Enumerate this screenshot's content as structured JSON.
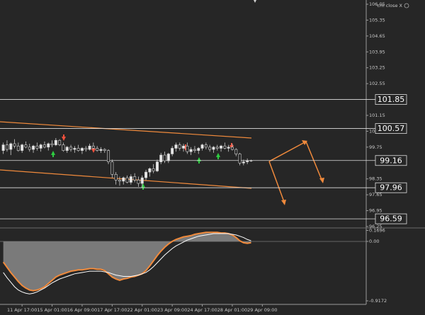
{
  "chart_data": {
    "type": "candlestick",
    "label": "crn close X",
    "categories": [
      null,
      null,
      null,
      null,
      null,
      "11 Apr 17:00",
      null,
      null,
      null,
      null,
      null,
      null,
      null,
      "15 Apr 01:00",
      null,
      null,
      null,
      null,
      null,
      null,
      null,
      "16 Apr 09:00",
      null,
      null,
      null,
      null,
      null,
      null,
      null,
      "17 Apr 17:00",
      null,
      null,
      null,
      null,
      null,
      null,
      null,
      "22 Apr 01:00",
      null,
      null,
      null,
      null,
      null,
      null,
      null,
      "23 Apr 09:00",
      null,
      null,
      null,
      null,
      null,
      null,
      null,
      "24 Apr 17:00",
      null,
      null,
      null,
      null,
      null,
      null,
      null,
      "28 Apr 01:00",
      null,
      null,
      null,
      null,
      null,
      null,
      null,
      "29 Apr 09:00"
    ],
    "candles": [
      [
        99.6,
        99.95,
        99.45,
        99.85
      ],
      [
        99.85,
        100.05,
        99.55,
        99.65
      ],
      [
        99.65,
        99.95,
        99.4,
        99.9
      ],
      [
        99.9,
        100.1,
        99.7,
        99.8
      ],
      [
        99.8,
        99.95,
        99.55,
        99.6
      ],
      [
        99.6,
        99.9,
        99.5,
        99.85
      ],
      [
        99.85,
        100.0,
        99.7,
        99.75
      ],
      [
        99.75,
        99.9,
        99.55,
        99.65
      ],
      [
        99.65,
        99.85,
        99.5,
        99.8
      ],
      [
        99.8,
        99.95,
        99.6,
        99.7
      ],
      [
        99.7,
        99.9,
        99.55,
        99.85
      ],
      [
        99.85,
        100.0,
        99.7,
        99.75
      ],
      [
        99.75,
        99.95,
        99.6,
        99.9
      ],
      [
        99.9,
        100.05,
        99.75,
        99.85
      ],
      [
        99.85,
        100.15,
        99.8,
        100.05
      ],
      [
        100.05,
        100.1,
        99.8,
        99.85
      ],
      [
        99.85,
        99.95,
        99.55,
        99.6
      ],
      [
        99.6,
        99.8,
        99.5,
        99.75
      ],
      [
        99.75,
        99.85,
        99.55,
        99.65
      ],
      [
        99.65,
        99.8,
        99.5,
        99.7
      ],
      [
        99.7,
        99.85,
        99.55,
        99.6
      ],
      [
        99.6,
        99.75,
        99.45,
        99.7
      ],
      [
        99.7,
        99.8,
        99.55,
        99.65
      ],
      [
        99.65,
        99.9,
        99.6,
        99.8
      ],
      [
        99.8,
        99.95,
        99.65,
        99.7
      ],
      [
        99.7,
        99.8,
        99.55,
        99.6
      ],
      [
        99.6,
        99.75,
        99.5,
        99.65
      ],
      [
        99.65,
        99.7,
        99.5,
        99.6
      ],
      [
        99.6,
        99.65,
        99.0,
        99.1
      ],
      [
        99.1,
        99.2,
        98.4,
        98.55
      ],
      [
        98.55,
        98.65,
        98.1,
        98.3
      ],
      [
        98.3,
        98.45,
        98.05,
        98.25
      ],
      [
        98.25,
        98.45,
        98.1,
        98.4
      ],
      [
        98.4,
        98.5,
        98.15,
        98.2
      ],
      [
        98.2,
        98.55,
        98.1,
        98.45
      ],
      [
        98.45,
        98.6,
        98.2,
        98.3
      ],
      [
        98.3,
        98.45,
        98.0,
        98.15
      ],
      [
        98.15,
        98.5,
        97.95,
        98.4
      ],
      [
        98.4,
        98.75,
        98.3,
        98.65
      ],
      [
        98.65,
        98.85,
        98.45,
        98.8
      ],
      [
        98.8,
        99.0,
        98.6,
        98.7
      ],
      [
        98.7,
        99.2,
        98.65,
        99.1
      ],
      [
        99.1,
        99.5,
        99.0,
        99.4
      ],
      [
        99.4,
        99.55,
        99.05,
        99.15
      ],
      [
        99.15,
        99.5,
        99.05,
        99.45
      ],
      [
        99.45,
        99.8,
        99.35,
        99.7
      ],
      [
        99.7,
        99.95,
        99.55,
        99.85
      ],
      [
        99.85,
        99.95,
        99.6,
        99.7
      ],
      [
        99.7,
        99.9,
        99.55,
        99.8
      ],
      [
        99.8,
        99.95,
        99.45,
        99.55
      ],
      [
        99.55,
        99.75,
        99.4,
        99.65
      ],
      [
        99.65,
        99.8,
        99.5,
        99.6
      ],
      [
        99.6,
        99.75,
        99.45,
        99.7
      ],
      [
        99.7,
        99.9,
        99.6,
        99.85
      ],
      [
        99.85,
        99.95,
        99.65,
        99.75
      ],
      [
        99.75,
        99.85,
        99.55,
        99.65
      ],
      [
        99.65,
        99.8,
        99.5,
        99.75
      ],
      [
        99.75,
        99.85,
        99.6,
        99.7
      ],
      [
        99.7,
        99.85,
        99.55,
        99.8
      ],
      [
        99.8,
        99.95,
        99.65,
        99.7
      ],
      [
        99.7,
        99.85,
        99.55,
        99.75
      ],
      [
        99.75,
        99.9,
        99.6,
        99.65
      ],
      [
        99.65,
        99.7,
        99.35,
        99.45
      ],
      [
        99.45,
        99.5,
        98.95,
        99.05
      ],
      [
        99.05,
        99.2,
        98.95,
        99.1
      ],
      [
        99.1,
        99.25,
        99.0,
        99.15
      ],
      [
        99.15,
        99.2,
        99.1,
        99.16
      ],
      null,
      null,
      null
    ],
    "ylim": [
      96.25,
      106.05
    ],
    "yticks": [
      106.05,
      105.35,
      104.65,
      103.95,
      103.25,
      102.55,
      101.15,
      100.45,
      99.75,
      98.35,
      97.65,
      96.95,
      96.25
    ],
    "levels": [
      101.85,
      100.57,
      99.16,
      97.96,
      96.59
    ],
    "up_color": "#e8e8e8",
    "down_color": "#262626",
    "wick_color": "#cfcfcf",
    "indicator": {
      "ylim": [
        -0.9172,
        0.1696
      ],
      "yticks": [
        0.1696,
        {
          "value": 0,
          "label": "0.00"
        },
        -0.9172
      ],
      "series": [
        {
          "color": "#f08a3c",
          "fill": "#7a7a7a",
          "values": [
            -0.32,
            -0.4,
            -0.48,
            -0.55,
            -0.62,
            -0.68,
            -0.72,
            -0.75,
            -0.76,
            -0.75,
            -0.73,
            -0.7,
            -0.65,
            -0.6,
            -0.55,
            -0.52,
            -0.5,
            -0.48,
            -0.46,
            -0.45,
            -0.44,
            -0.44,
            -0.43,
            -0.42,
            -0.42,
            -0.43,
            -0.43,
            -0.45,
            -0.5,
            -0.55,
            -0.58,
            -0.6,
            -0.58,
            -0.57,
            -0.55,
            -0.54,
            -0.52,
            -0.5,
            -0.45,
            -0.38,
            -0.3,
            -0.22,
            -0.15,
            -0.09,
            -0.04,
            0.0,
            0.03,
            0.05,
            0.07,
            0.08,
            0.09,
            0.11,
            0.12,
            0.13,
            0.14,
            0.14,
            0.14,
            0.14,
            0.13,
            0.13,
            0.12,
            0.1,
            0.06,
            0.01,
            -0.02,
            -0.03,
            -0.02,
            null,
            null,
            null
          ]
        },
        {
          "color": "#ffffff",
          "values": [
            -0.48,
            -0.56,
            -0.63,
            -0.7,
            -0.75,
            -0.78,
            -0.8,
            -0.81,
            -0.8,
            -0.78,
            -0.75,
            -0.72,
            -0.68,
            -0.64,
            -0.61,
            -0.58,
            -0.56,
            -0.54,
            -0.52,
            -0.5,
            -0.49,
            -0.48,
            -0.47,
            -0.46,
            -0.46,
            -0.46,
            -0.46,
            -0.47,
            -0.48,
            -0.5,
            -0.52,
            -0.53,
            -0.54,
            -0.54,
            -0.54,
            -0.53,
            -0.52,
            -0.5,
            -0.48,
            -0.44,
            -0.39,
            -0.33,
            -0.27,
            -0.21,
            -0.16,
            -0.11,
            -0.07,
            -0.04,
            -0.01,
            0.02,
            0.04,
            0.06,
            0.08,
            0.09,
            0.1,
            0.11,
            0.12,
            0.12,
            0.12,
            0.12,
            0.12,
            0.11,
            0.1,
            0.08,
            0.06,
            0.03,
            0.01,
            null,
            null,
            null
          ]
        }
      ]
    }
  }
}
